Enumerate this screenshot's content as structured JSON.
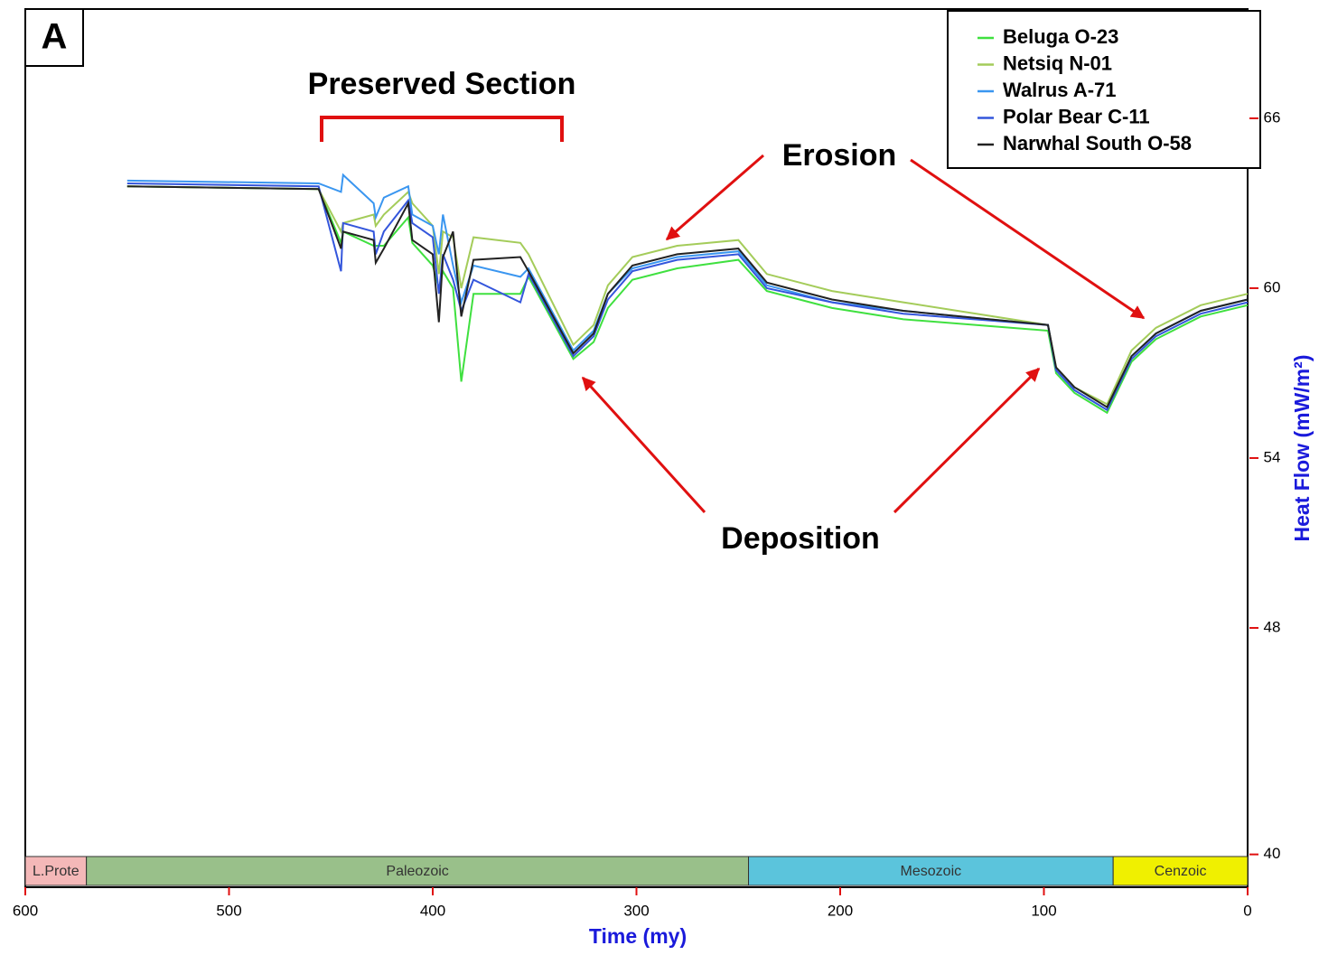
{
  "chart_data": {
    "type": "line",
    "annotations": {
      "panel": "A",
      "preserved": "Preserved Section",
      "erosion": "Erosion",
      "deposition": "Deposition"
    },
    "xlabel": "Time (my)",
    "ylabel": "Heat Flow (mW/m²)",
    "xlim": [
      600,
      0
    ],
    "xticks": [
      600,
      500,
      400,
      300,
      200,
      100,
      0
    ],
    "ylim": [
      38.84,
      69.86
    ],
    "yticks": [
      66,
      60,
      54,
      48,
      40
    ],
    "eras": [
      {
        "label": "L.Prote",
        "start": 600,
        "end": 570,
        "color": "#f4b8b8"
      },
      {
        "label": "Paleozoic",
        "start": 570,
        "end": 245,
        "color": "#99c08a"
      },
      {
        "label": "Mesozoic",
        "start": 245,
        "end": 66,
        "color": "#5bc4dc"
      },
      {
        "label": "Cenzoic",
        "start": 66,
        "end": 0,
        "color": "#f0f000"
      }
    ],
    "x": [
      550,
      456,
      445,
      444,
      429,
      428,
      424,
      412,
      410,
      400,
      397,
      395,
      390,
      386,
      380,
      357,
      353,
      331,
      321,
      314,
      302,
      280,
      250,
      236,
      204,
      169,
      98,
      94,
      85,
      69,
      57,
      45,
      23,
      0
    ],
    "series": [
      {
        "name": "Beluga O-23",
        "color": "#3fe03f",
        "values": [
          63.6,
          63.5,
          61.6,
          62.0,
          61.5,
          61.5,
          61.5,
          62.5,
          61.6,
          60.8,
          60.0,
          60.6,
          60.0,
          56.7,
          59.8,
          59.8,
          60.4,
          57.5,
          58.1,
          59.3,
          60.3,
          60.7,
          61.0,
          59.9,
          59.3,
          58.9,
          58.5,
          57.0,
          56.3,
          55.6,
          57.4,
          58.2,
          59.0,
          59.4
        ]
      },
      {
        "name": "Netsiq N-01",
        "color": "#a4cc5a",
        "values": [
          63.6,
          63.5,
          62.0,
          62.3,
          62.6,
          62.2,
          62.6,
          63.4,
          63.0,
          62.2,
          60.5,
          62.0,
          61.8,
          60.0,
          61.8,
          61.6,
          61.2,
          58.0,
          58.7,
          60.1,
          61.1,
          61.5,
          61.7,
          60.5,
          59.9,
          59.5,
          58.7,
          57.2,
          56.5,
          55.9,
          57.8,
          58.6,
          59.4,
          59.8
        ]
      },
      {
        "name": "Walrus A-71",
        "color": "#3a96f0",
        "values": [
          63.8,
          63.7,
          63.4,
          64.0,
          63.0,
          62.5,
          63.2,
          63.6,
          62.6,
          62.2,
          61.2,
          62.6,
          60.8,
          59.5,
          60.8,
          60.4,
          60.7,
          57.8,
          58.5,
          59.8,
          60.7,
          61.1,
          61.3,
          60.1,
          59.5,
          59.2,
          58.7,
          57.1,
          56.4,
          55.7,
          57.6,
          58.4,
          59.2,
          59.6
        ]
      },
      {
        "name": "Polar Bear C-11",
        "color": "#3456dc",
        "values": [
          63.7,
          63.6,
          60.6,
          62.3,
          62.0,
          61.2,
          62.0,
          63.1,
          62.3,
          61.8,
          59.8,
          61.2,
          60.3,
          59.2,
          60.3,
          59.5,
          60.5,
          57.6,
          58.3,
          59.6,
          60.6,
          61.0,
          61.2,
          60.0,
          59.5,
          59.1,
          58.7,
          57.1,
          56.4,
          55.7,
          57.5,
          58.3,
          59.1,
          59.5
        ]
      },
      {
        "name": "Narwhal South O-58",
        "color": "#222222",
        "values": [
          63.6,
          63.5,
          61.4,
          62.0,
          61.7,
          60.9,
          61.4,
          63.0,
          61.7,
          61.2,
          58.8,
          61.1,
          62.0,
          59.0,
          61.0,
          61.1,
          60.6,
          57.7,
          58.4,
          59.8,
          60.8,
          61.2,
          61.4,
          60.2,
          59.6,
          59.2,
          58.7,
          57.2,
          56.5,
          55.8,
          57.6,
          58.4,
          59.2,
          59.6
        ]
      }
    ]
  }
}
